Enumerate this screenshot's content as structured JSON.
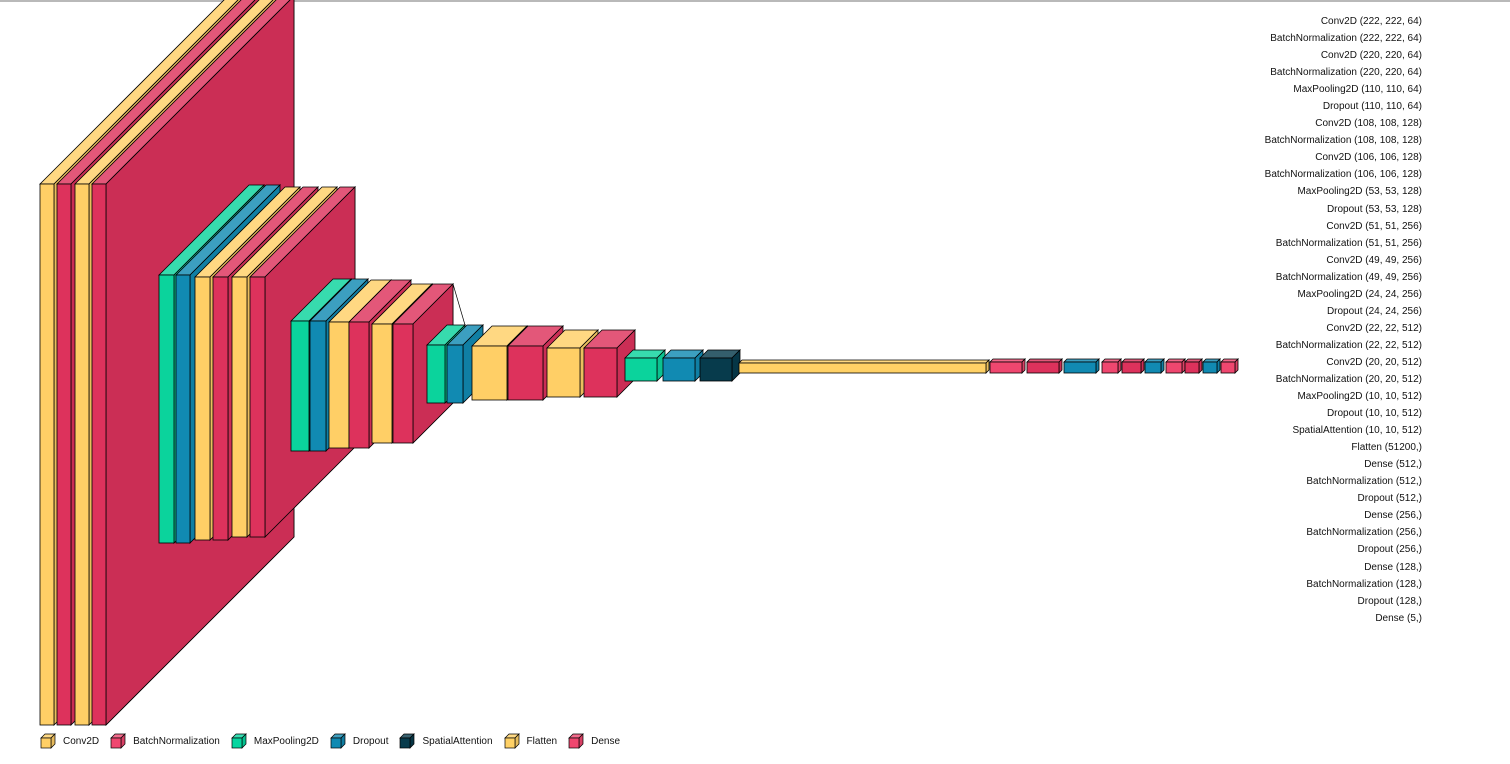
{
  "legend": [
    {
      "label": "Conv2D",
      "color": "#FFCF66"
    },
    {
      "label": "BatchNormalization",
      "color": "#F04770"
    },
    {
      "label": "MaxPooling2D",
      "color": "#06D6A0"
    },
    {
      "label": "Dropout",
      "color": "#118AB2"
    },
    {
      "label": "SpatialAttention",
      "color": "#073B4C"
    },
    {
      "label": "Flatten",
      "color": "#FFD166"
    },
    {
      "label": "Dense",
      "color": "#EF476F"
    }
  ],
  "layers": [
    {
      "type": "Conv2D",
      "shape": "(222, 222, 64)"
    },
    {
      "type": "BatchNormalization",
      "shape": "(222, 222, 64)"
    },
    {
      "type": "Conv2D",
      "shape": "(220, 220, 64)"
    },
    {
      "type": "BatchNormalization",
      "shape": "(220, 220, 64)"
    },
    {
      "type": "MaxPooling2D",
      "shape": "(110, 110, 64)"
    },
    {
      "type": "Dropout",
      "shape": "(110, 110, 64)"
    },
    {
      "type": "Conv2D",
      "shape": "(108, 108, 128)"
    },
    {
      "type": "BatchNormalization",
      "shape": "(108, 108, 128)"
    },
    {
      "type": "Conv2D",
      "shape": "(106, 106, 128)"
    },
    {
      "type": "BatchNormalization",
      "shape": "(106, 106, 128)"
    },
    {
      "type": "MaxPooling2D",
      "shape": "(53, 53, 128)"
    },
    {
      "type": "Dropout",
      "shape": "(53, 53, 128)"
    },
    {
      "type": "Conv2D",
      "shape": "(51, 51, 256)"
    },
    {
      "type": "BatchNormalization",
      "shape": "(51, 51, 256)"
    },
    {
      "type": "Conv2D",
      "shape": "(49, 49, 256)"
    },
    {
      "type": "BatchNormalization",
      "shape": "(49, 49, 256)"
    },
    {
      "type": "MaxPooling2D",
      "shape": "(24, 24, 256)"
    },
    {
      "type": "Dropout",
      "shape": "(24, 24, 256)"
    },
    {
      "type": "Conv2D",
      "shape": "(22, 22, 512)"
    },
    {
      "type": "BatchNormalization",
      "shape": "(22, 22, 512)"
    },
    {
      "type": "Conv2D",
      "shape": "(20, 20, 512)"
    },
    {
      "type": "BatchNormalization",
      "shape": "(20, 20, 512)"
    },
    {
      "type": "MaxPooling2D",
      "shape": "(10, 10, 512)"
    },
    {
      "type": "Dropout",
      "shape": "(10, 10, 512)"
    },
    {
      "type": "SpatialAttention",
      "shape": "(10, 10, 512)"
    },
    {
      "type": "Flatten",
      "shape": "(51200,)"
    },
    {
      "type": "Dense",
      "shape": "(512,)"
    },
    {
      "type": "BatchNormalization",
      "shape": "(512,)"
    },
    {
      "type": "Dropout",
      "shape": "(512,)"
    },
    {
      "type": "Dense",
      "shape": "(256,)"
    },
    {
      "type": "BatchNormalization",
      "shape": "(256,)"
    },
    {
      "type": "Dropout",
      "shape": "(256,)"
    },
    {
      "type": "Dense",
      "shape": "(128,)"
    },
    {
      "type": "BatchNormalization",
      "shape": "(128,)"
    },
    {
      "type": "Dropout",
      "shape": "(128,)"
    },
    {
      "type": "Dense",
      "shape": "(5,)"
    }
  ]
}
